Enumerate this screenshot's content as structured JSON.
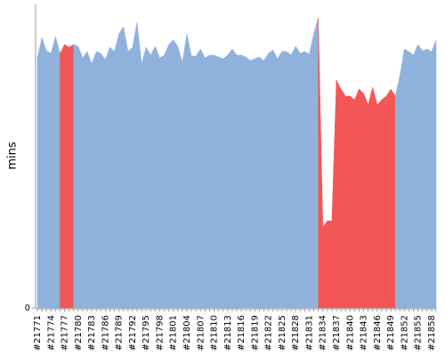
{
  "chart_data": {
    "type": "area",
    "y_label": "mins",
    "categories": [
      "#21771",
      null,
      null,
      "#21774",
      null,
      null,
      "#21777",
      null,
      null,
      "#21780",
      null,
      null,
      "#21783",
      null,
      null,
      "#21786",
      null,
      null,
      "#21789",
      null,
      null,
      "#21792",
      null,
      null,
      "#21795",
      null,
      null,
      "#21798",
      null,
      null,
      "#21801",
      null,
      null,
      "#21804",
      null,
      null,
      "#21807",
      null,
      null,
      "#21810",
      null,
      null,
      "#21813",
      null,
      null,
      "#21816",
      null,
      null,
      "#21819",
      null,
      null,
      "#21822",
      null,
      null,
      "#21825",
      null,
      null,
      "#21828",
      null,
      null,
      "#21831",
      null,
      null,
      "#21834",
      null,
      null,
      "#21837",
      null,
      null,
      "#21840",
      null,
      null,
      "#21843",
      null,
      null,
      "#21846",
      null,
      null,
      "#21849",
      null,
      null,
      "#21852",
      null,
      null,
      "#21855",
      null,
      null,
      "#21858",
      null
    ],
    "values": [
      8.24,
      8.91,
      8.47,
      8.39,
      8.94,
      8.39,
      8.68,
      8.59,
      8.68,
      8.62,
      8.24,
      8.45,
      8.04,
      8.45,
      8.39,
      8.18,
      8.59,
      8.45,
      9.03,
      9.27,
      8.45,
      8.59,
      9.41,
      8.04,
      8.59,
      8.33,
      8.62,
      8.24,
      8.33,
      8.68,
      8.83,
      8.62,
      8.09,
      9.03,
      8.3,
      8.3,
      8.53,
      8.24,
      8.33,
      8.33,
      8.27,
      8.21,
      8.33,
      8.53,
      8.33,
      8.33,
      8.27,
      8.15,
      8.21,
      8.27,
      8.15,
      8.39,
      8.5,
      8.21,
      8.45,
      8.45,
      8.33,
      8.62,
      8.39,
      8.45,
      8.36,
      9.03,
      9.56,
      2.67,
      2.87,
      2.87,
      7.51,
      7.21,
      6.98,
      6.98,
      6.86,
      7.21,
      7.07,
      6.69,
      7.27,
      6.69,
      6.86,
      6.98,
      7.21,
      6.98,
      7.65,
      8.53,
      8.45,
      8.33,
      8.68,
      8.47,
      8.53,
      8.45,
      8.83
    ],
    "colors": [
      "#8fb2dc",
      "#8fb2dc",
      "#8fb2dc",
      "#8fb2dc",
      "#8fb2dc",
      "#8fb2dc",
      "#f25656",
      "#f25656",
      "#f25656",
      "#8fb2dc",
      "#8fb2dc",
      "#8fb2dc",
      "#8fb2dc",
      "#8fb2dc",
      "#8fb2dc",
      "#8fb2dc",
      "#8fb2dc",
      "#8fb2dc",
      "#8fb2dc",
      "#8fb2dc",
      "#8fb2dc",
      "#8fb2dc",
      "#8fb2dc",
      "#8fb2dc",
      "#8fb2dc",
      "#8fb2dc",
      "#8fb2dc",
      "#8fb2dc",
      "#8fb2dc",
      "#8fb2dc",
      "#8fb2dc",
      "#8fb2dc",
      "#8fb2dc",
      "#8fb2dc",
      "#8fb2dc",
      "#8fb2dc",
      "#8fb2dc",
      "#8fb2dc",
      "#8fb2dc",
      "#8fb2dc",
      "#8fb2dc",
      "#8fb2dc",
      "#8fb2dc",
      "#8fb2dc",
      "#8fb2dc",
      "#8fb2dc",
      "#8fb2dc",
      "#8fb2dc",
      "#8fb2dc",
      "#8fb2dc",
      "#8fb2dc",
      "#8fb2dc",
      "#8fb2dc",
      "#8fb2dc",
      "#8fb2dc",
      "#8fb2dc",
      "#8fb2dc",
      "#8fb2dc",
      "#8fb2dc",
      "#8fb2dc",
      "#8fb2dc",
      "#8fb2dc",
      "#8fb2dc",
      "#f25656",
      "#f25656",
      "#f25656",
      "#f25656",
      "#f25656",
      "#f25656",
      "#f25656",
      "#f25656",
      "#f25656",
      "#f25656",
      "#f25656",
      "#f25656",
      "#f25656",
      "#f25656",
      "#f25656",
      "#f25656",
      "#f25656",
      "#8fb2dc",
      "#8fb2dc",
      "#8fb2dc",
      "#8fb2dc",
      "#8fb2dc",
      "#8fb2dc",
      "#8fb2dc",
      "#8fb2dc",
      "#8fb2dc"
    ],
    "ylim": [
      0,
      10
    ],
    "yticks": [
      0
    ]
  }
}
